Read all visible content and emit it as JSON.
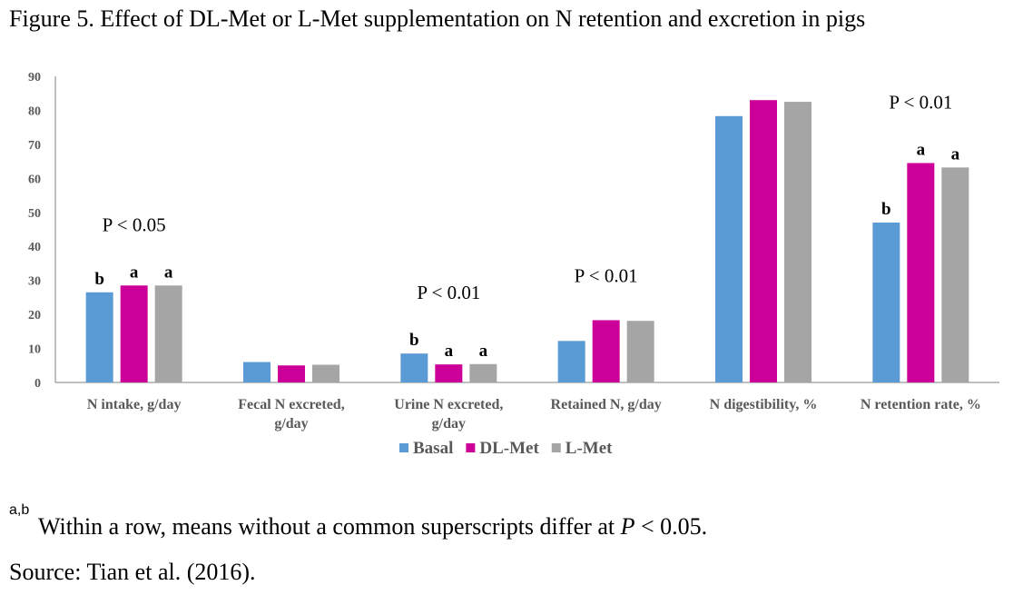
{
  "figure_title": "Figure 5. Effect of DL-Met or L-Met supplementation on N retention and excretion in pigs",
  "chart_data": {
    "type": "bar",
    "categories": [
      [
        "N intake, g/day"
      ],
      [
        "Fecal N excreted,",
        "g/day"
      ],
      [
        "Urine N excreted,",
        "g/day"
      ],
      [
        "Retained N, g/day"
      ],
      [
        "N digestibility, %"
      ],
      [
        "N retention rate, %"
      ]
    ],
    "series": [
      {
        "name": "Basal",
        "color": "#5B9BD5",
        "values": [
          26.5,
          6.0,
          8.5,
          12.2,
          78.3,
          47.0
        ]
      },
      {
        "name": "DL-Met",
        "color": "#CC0099",
        "values": [
          28.5,
          5.0,
          5.3,
          18.3,
          83.0,
          64.5
        ]
      },
      {
        "name": "L-Met",
        "color": "#A5A5A5",
        "values": [
          28.5,
          5.2,
          5.4,
          18.1,
          82.5,
          63.2
        ]
      }
    ],
    "ylim": [
      0,
      90
    ],
    "yticks": [
      0,
      10,
      20,
      30,
      40,
      50,
      60,
      70,
      80,
      90
    ],
    "letters": [
      [
        "b",
        "a",
        "a"
      ],
      [
        "",
        "",
        ""
      ],
      [
        "b",
        "a",
        "a"
      ],
      [
        "",
        "",
        ""
      ],
      [
        "",
        "",
        ""
      ],
      [
        "b",
        "a",
        "a"
      ]
    ],
    "p_values": [
      "P < 0.05",
      "",
      "P < 0.01",
      "P < 0.01",
      "",
      "P < 0.01"
    ],
    "legend_position": "bottom-center"
  },
  "footnote": {
    "superscript": "a,b",
    "text_before": "Within a row, means without a common superscripts differ at ",
    "italic": "P",
    "text_after": " < 0.05."
  },
  "source": "Source: Tian et al. (2016)."
}
